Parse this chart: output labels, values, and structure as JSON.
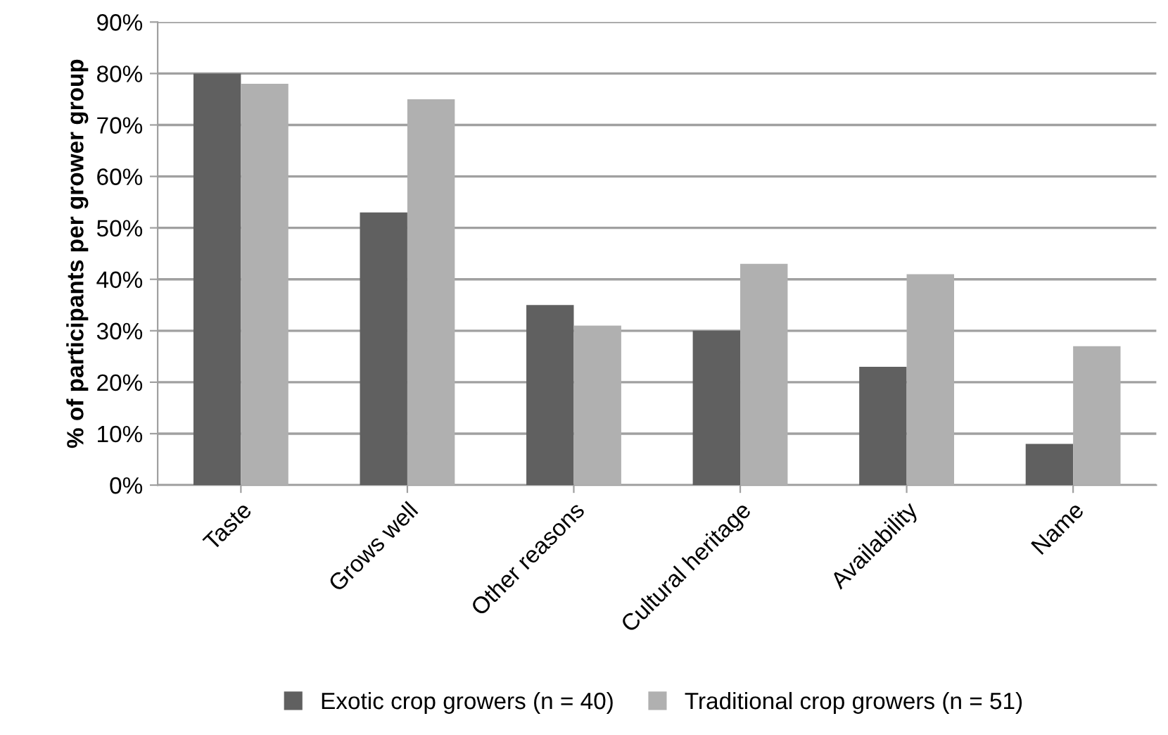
{
  "chart_data": {
    "type": "bar",
    "ylabel": "% of participants per grower group",
    "categories": [
      "Taste",
      "Grows well",
      "Other reasons",
      "Cultural heritage",
      "Availability",
      "Name"
    ],
    "series": [
      {
        "name": "Exotic crop growers (n = 40)",
        "color": "#606060",
        "values": [
          80,
          53,
          35,
          30,
          23,
          8
        ]
      },
      {
        "name": "Traditional crop growers (n = 51)",
        "color": "#b0b0b0",
        "values": [
          78,
          75,
          31,
          43,
          41,
          27
        ]
      }
    ],
    "ylim": [
      0,
      90
    ],
    "yticks": [
      {
        "value": 0,
        "label": "0%"
      },
      {
        "value": 10,
        "label": "10%"
      },
      {
        "value": 20,
        "label": "20%"
      },
      {
        "value": 30,
        "label": "30%"
      },
      {
        "value": 40,
        "label": "40%"
      },
      {
        "value": 50,
        "label": "50%"
      },
      {
        "value": 60,
        "label": "60%"
      },
      {
        "value": 70,
        "label": "70%"
      },
      {
        "value": 80,
        "label": "80%"
      },
      {
        "value": 90,
        "label": "90%"
      }
    ],
    "grid": "y",
    "legend": "bottom"
  }
}
